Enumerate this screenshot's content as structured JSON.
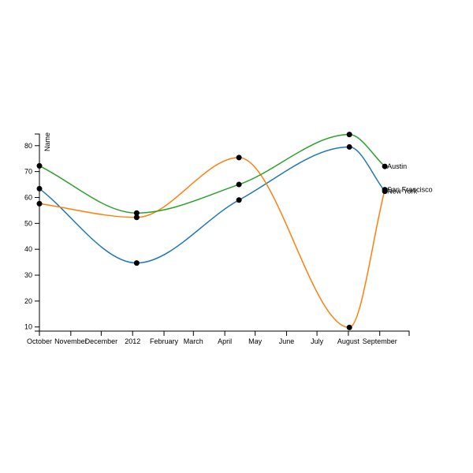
{
  "chart_data": {
    "type": "line",
    "curve": "smooth",
    "ylabel": "Name",
    "ylim": [
      8.4,
      84.5
    ],
    "xlim": [
      "2011-10-01",
      "2012-09-30"
    ],
    "y_ticks": [
      10,
      20,
      30,
      40,
      50,
      60,
      70,
      80
    ],
    "x_tick_labels": [
      "October",
      "November",
      "December",
      "2012",
      "February",
      "March",
      "April",
      "May",
      "June",
      "July",
      "August",
      "September"
    ],
    "x": [
      "2011-10-01",
      "2012-01-05",
      "2012-04-15",
      "2012-08-02",
      "2012-09-06"
    ],
    "series": [
      {
        "name": "New York",
        "color": "#1f77b4",
        "values": [
          63.4,
          34.7,
          59.0,
          79.5,
          62.4
        ]
      },
      {
        "name": "San Francisco",
        "color": "#ff7f0e",
        "values": [
          57.6,
          52.3,
          75.4,
          9.8,
          63.0
        ]
      },
      {
        "name": "Austin",
        "color": "#2ca02c",
        "values": [
          72.2,
          54.0,
          65.0,
          84.3,
          72.0
        ]
      }
    ]
  }
}
